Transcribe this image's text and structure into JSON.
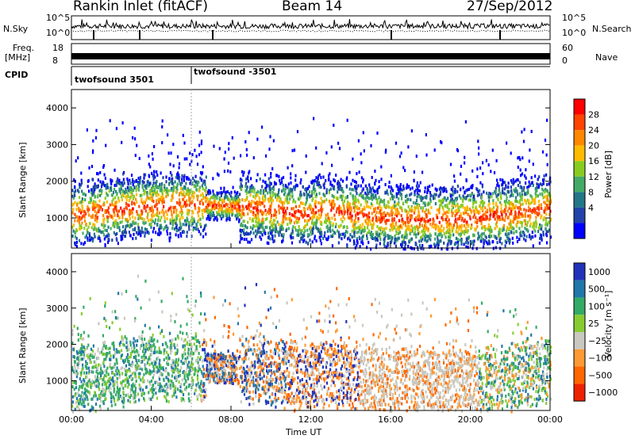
{
  "header": {
    "station": "Rankin Inlet (fitACF)",
    "beam": "Beam 14",
    "date": "27/Sep/2012"
  },
  "top_panel": {
    "left_label": "N.Sky",
    "right_label": "N.Search",
    "left_ticks": [
      "10^5",
      "10^0"
    ],
    "right_ticks": [
      "10^5",
      "10^0"
    ]
  },
  "freq_panel": {
    "left_label_1": "Freq.",
    "left_label_2": "[MHz]",
    "right_label": "Nave",
    "left_ticks": [
      "18",
      "8"
    ],
    "right_ticks": [
      "60",
      "0"
    ]
  },
  "cpid": {
    "label": "CPID",
    "mode_1": "twofsound 3501",
    "mode_2": "twofsound -3501"
  },
  "chart_data": [
    {
      "type": "heatmap",
      "panel": "power",
      "ylabel": "Slant Range [km]",
      "xlabel": "",
      "y_ticks": [
        "1000",
        "2000",
        "3000",
        "4000"
      ],
      "colorbar_label": "Power [dB]",
      "colorbar_ticks": [
        "28",
        "24",
        "20",
        "16",
        "12",
        "8",
        "4"
      ],
      "colors": [
        "#ff0000",
        "#ff4400",
        "#ff8800",
        "#ffbb00",
        "#88cc22",
        "#44aa66",
        "#227788",
        "#2244aa",
        "#0000ff"
      ],
      "ylim": [
        180,
        4500
      ]
    },
    {
      "type": "heatmap",
      "panel": "velocity",
      "ylabel": "Slant Range [km]",
      "xlabel": "Time UT",
      "x_ticks": [
        "00:00",
        "04:00",
        "08:00",
        "12:00",
        "16:00",
        "20:00",
        "00:00"
      ],
      "y_ticks": [
        "1000",
        "2000",
        "3000",
        "4000"
      ],
      "colorbar_label": "Velocity [m s⁻¹]",
      "colorbar_ticks": [
        "1000",
        "500",
        "100",
        "25",
        "−25",
        "−100",
        "−500",
        "−1000"
      ],
      "colors": [
        "#2233bb",
        "#2277aa",
        "#33aa66",
        "#88cc33",
        "#c8c8c0",
        "#ff9933",
        "#ff6600",
        "#ee2200"
      ],
      "ylim": [
        180,
        4500
      ]
    }
  ]
}
